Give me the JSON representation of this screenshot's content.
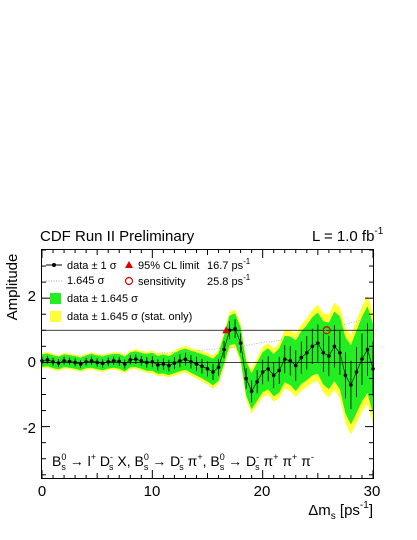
{
  "header": {
    "left": "CDF Run II Preliminary",
    "right_prefix": "L = 1.0 fb",
    "right_sup": "-1"
  },
  "axes": {
    "ylabel": "Amplitude",
    "xlabel_main": "Δm",
    "xlabel_sub": "s",
    "xlabel_unit": " [ps",
    "xlabel_sup": "-1",
    "xlabel_close": "]",
    "xlim": [
      0,
      30
    ],
    "ylim": [
      -3.6,
      3.5
    ],
    "xticks": [
      "0",
      "10",
      "20",
      "30"
    ],
    "yticks": [
      "2",
      "0",
      "-2"
    ]
  },
  "legend": {
    "data_1sigma": "data ± 1 σ",
    "limit_label": "95% CL limit",
    "limit_value": "16.7 ps",
    "limit_sup": "-1",
    "sigma_1645": "1.645 σ",
    "sensitivity_label": "sensitivity",
    "sensitivity_value": "25.8 ps",
    "sensitivity_sup": "-1",
    "band_green": "data ± 1.645 σ",
    "band_yellow": "data ± 1.645 σ (stat. only)"
  },
  "decay_text": {
    "t1": "B",
    "t1sub": "s",
    "t1sup": "0",
    "t2": " → l",
    "t2sup": "+",
    "t3": " D",
    "t3sub": "s",
    "t3sup": "-",
    "t4": " X, B",
    "t4sub": "s",
    "t4sup": "0",
    "t5": " → D",
    "t5sub": "s",
    "t5sup": "-",
    "t6": " π",
    "t6sup": "+",
    "t7": ", B",
    "t7sub": "s",
    "t7sup": "0",
    "t8": " → D",
    "t8sub": "s",
    "t8sup": "-",
    "t9": " π",
    "t9sup": "+",
    "t10": " π",
    "t10sup": "+",
    "t11": " π",
    "t11sup": "-"
  },
  "colors": {
    "green_band": "#22ee22",
    "yellow_band": "#ffff33",
    "limit_marker": "#dd0000",
    "sensitivity_marker": "#dd0000",
    "data": "#000000"
  },
  "chart_data": {
    "type": "line",
    "title": "CDF Run II Preliminary",
    "xlabel": "Δm_s [ps^-1]",
    "ylabel": "Amplitude",
    "xlim": [
      0,
      30
    ],
    "ylim": [
      -3.6,
      3.5
    ],
    "reference_lines": [
      0,
      1
    ],
    "limit_95cl": 16.7,
    "sensitivity": 25.8,
    "x": [
      0,
      0.5,
      1,
      1.5,
      2,
      2.5,
      3,
      3.5,
      4,
      4.5,
      5,
      5.5,
      6,
      6.5,
      7,
      7.5,
      8,
      8.5,
      9,
      9.5,
      10,
      10.5,
      11,
      11.5,
      12,
      12.5,
      13,
      13.5,
      14,
      14.5,
      15,
      15.5,
      16,
      16.5,
      17,
      17.5,
      18,
      18.5,
      19,
      19.5,
      20,
      20.5,
      21,
      21.5,
      22,
      22.5,
      23,
      23.5,
      24,
      24.5,
      25,
      25.5,
      26,
      26.5,
      27,
      27.5,
      28,
      28.5,
      29,
      29.5,
      30
    ],
    "series": [
      {
        "name": "data ± 1 σ",
        "values": [
          0.05,
          0.08,
          0.02,
          -0.02,
          0.05,
          0.03,
          0.0,
          -0.05,
          0.02,
          0.05,
          0.0,
          -0.03,
          0.02,
          0.05,
          0.03,
          -0.05,
          0.08,
          0.1,
          0.05,
          0.0,
          0.02,
          -0.08,
          -0.05,
          -0.1,
          -0.02,
          0.05,
          0.1,
          0.02,
          -0.05,
          -0.12,
          -0.2,
          -0.3,
          -0.15,
          0.4,
          1.0,
          1.05,
          0.6,
          -0.5,
          -0.9,
          -0.6,
          -0.3,
          -0.2,
          -0.4,
          -0.25,
          0.1,
          0.05,
          -0.1,
          0.15,
          0.3,
          0.5,
          0.6,
          0.3,
          0.2,
          0.5,
          0.3,
          -0.4,
          -0.7,
          -0.3,
          0.1,
          0.4,
          -0.2
        ],
        "sigma": [
          0.12,
          0.12,
          0.12,
          0.12,
          0.12,
          0.12,
          0.12,
          0.12,
          0.12,
          0.13,
          0.13,
          0.13,
          0.13,
          0.13,
          0.14,
          0.14,
          0.14,
          0.15,
          0.15,
          0.16,
          0.17,
          0.17,
          0.18,
          0.18,
          0.19,
          0.2,
          0.2,
          0.21,
          0.22,
          0.23,
          0.24,
          0.25,
          0.26,
          0.27,
          0.28,
          0.29,
          0.3,
          0.32,
          0.34,
          0.36,
          0.38,
          0.39,
          0.4,
          0.42,
          0.44,
          0.46,
          0.48,
          0.5,
          0.52,
          0.55,
          0.58,
          0.6,
          0.63,
          0.66,
          0.69,
          0.72,
          0.75,
          0.78,
          0.8,
          0.82,
          0.85
        ]
      }
    ],
    "bands": [
      {
        "name": "data ± 1.645 σ",
        "color": "#22ee22"
      },
      {
        "name": "data ± 1.645 σ (stat. only)",
        "color": "#ffff33"
      }
    ]
  }
}
